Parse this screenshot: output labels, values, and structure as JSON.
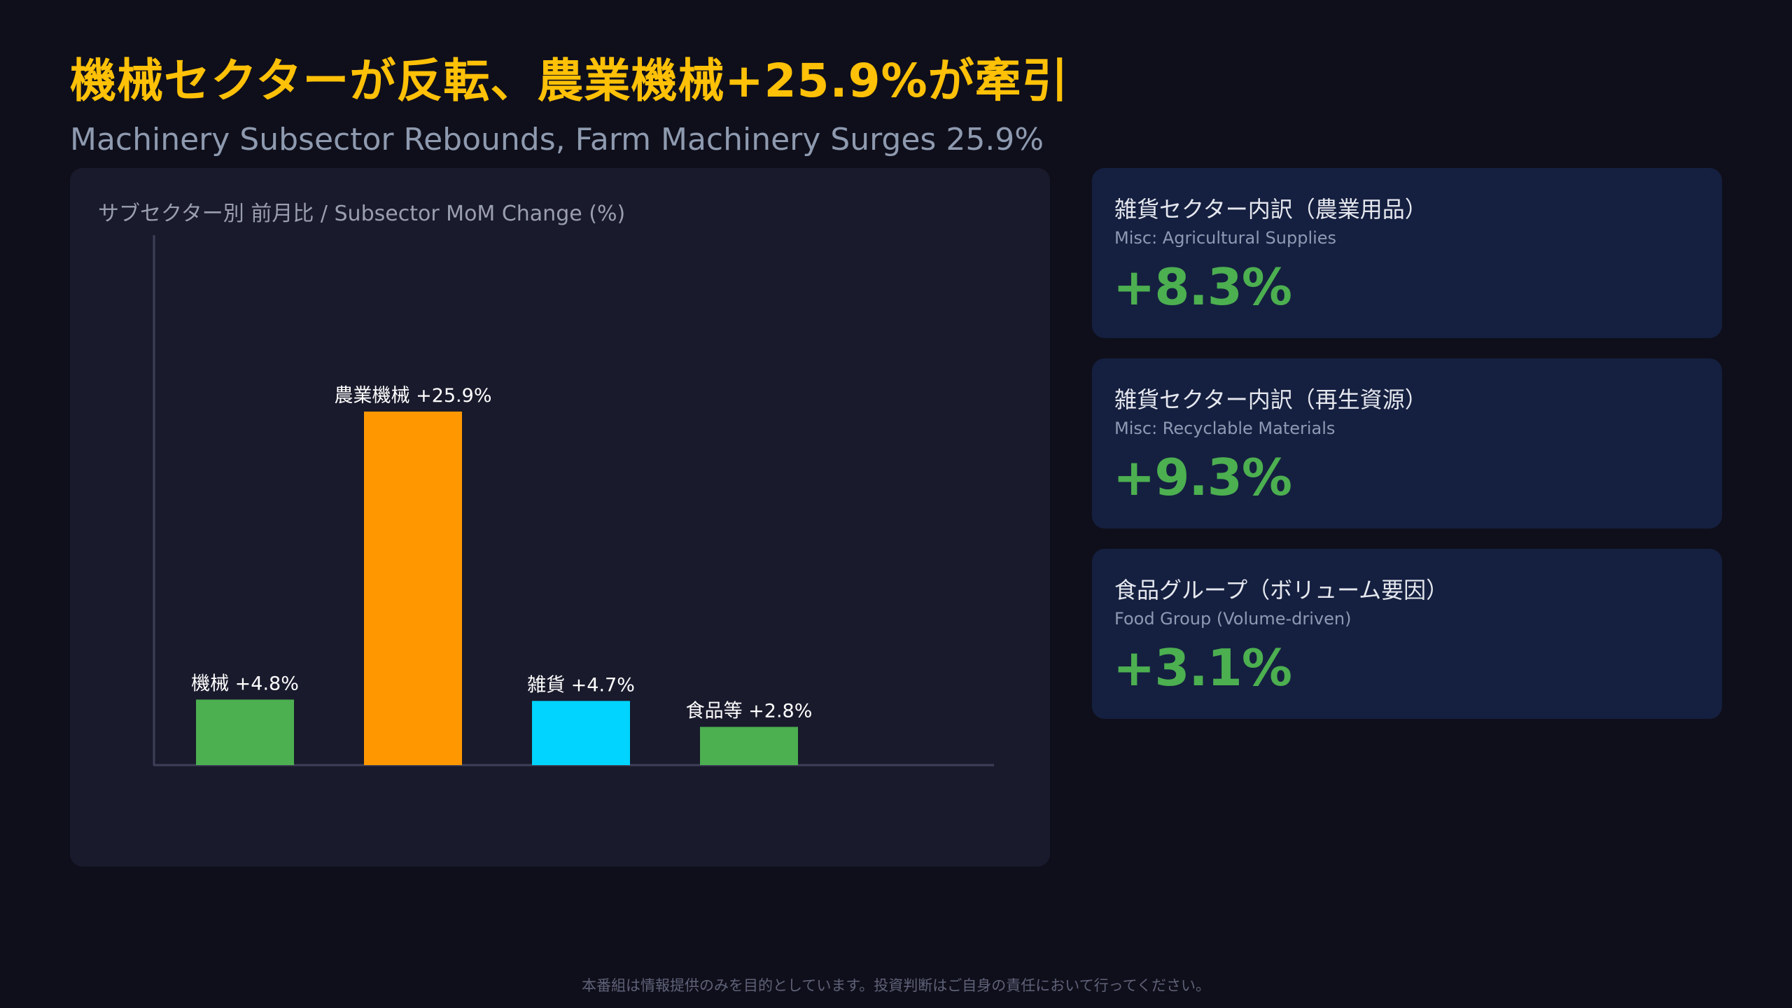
{
  "header": {
    "title": "機械セクターが反転、農業機械+25.9%が牽引",
    "subtitle": "Machinery Subsector Rebounds, Farm Machinery Surges 25.9%"
  },
  "chart_data": {
    "type": "bar",
    "title": "サブセクター別 前月比 / Subsector MoM Change (%)",
    "categories": [
      "機械",
      "農業機械",
      "雑貨",
      "食品等"
    ],
    "values": [
      4.8,
      25.9,
      4.7,
      2.8
    ],
    "data_labels": [
      "機械 +4.8%",
      "農業機械 +25.9%",
      "雑貨 +4.7%",
      "食品等 +2.8%"
    ],
    "colors": [
      "#4caf50",
      "#ff9800",
      "#00d4ff",
      "#4caf50"
    ],
    "xlabel": "",
    "ylabel": "",
    "grid": false
  },
  "cards": [
    {
      "title": "雑貨セクター内訳（農業用品）",
      "subtitle": "Misc: Agricultural Supplies",
      "value": "+8.3%"
    },
    {
      "title": "雑貨セクター内訳（再生資源）",
      "subtitle": "Misc: Recyclable Materials",
      "value": "+9.3%"
    },
    {
      "title": "食品グループ（ボリューム要因）",
      "subtitle": "Food Group (Volume-driven)",
      "value": "+3.1%"
    }
  ],
  "footer": {
    "disclaimer": "本番組は情報提供のみを目的としています。投資判断はご自身の責任において行ってください。"
  },
  "theme": {
    "accent": "#ffc107",
    "positive": "#4caf50",
    "background": "#0f0f1b",
    "panel": "#191a2c",
    "card": "#152040"
  }
}
